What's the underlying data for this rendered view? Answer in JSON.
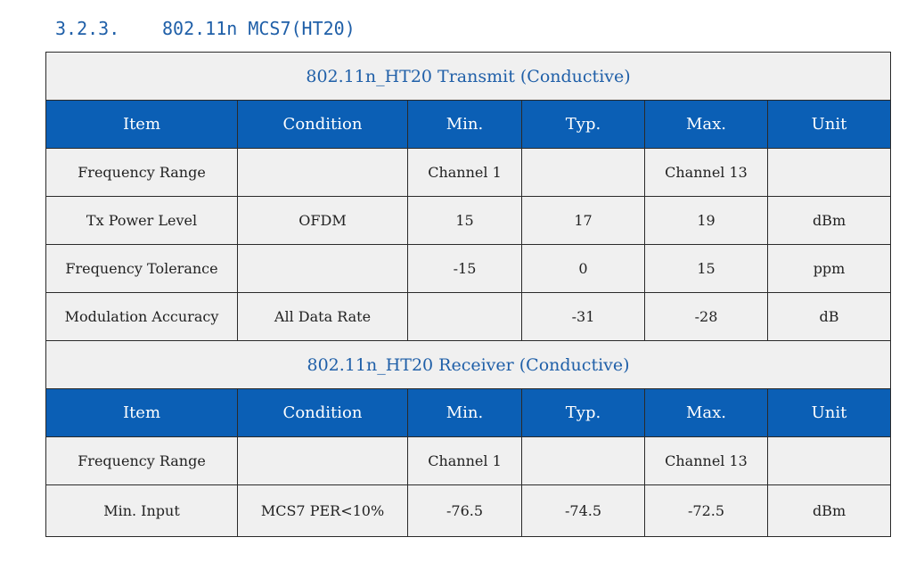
{
  "heading": {
    "number": "3.2.3.",
    "title": "802.11n MCS7(HT20)"
  },
  "transmit": {
    "title": "802.11n_HT20 Transmit (Conductive)",
    "columns": [
      "Item",
      "Condition",
      "Min.",
      "Typ.",
      "Max.",
      "Unit"
    ],
    "rows": [
      [
        "Frequency Range",
        "",
        "Channel 1",
        "",
        "Channel 13",
        ""
      ],
      [
        "Tx Power Level",
        "OFDM",
        "15",
        "17",
        "19",
        "dBm"
      ],
      [
        "Frequency Tolerance",
        "",
        "-15",
        "0",
        "15",
        "ppm"
      ],
      [
        "Modulation Accuracy",
        "All Data Rate",
        "",
        "-31",
        "-28",
        "dB"
      ]
    ]
  },
  "receiver": {
    "title": "802.11n_HT20 Receiver (Conductive)",
    "columns": [
      "Item",
      "Condition",
      "Min.",
      "Typ.",
      "Max.",
      "Unit"
    ],
    "rows": [
      [
        "Frequency Range",
        "",
        "Channel 1",
        "",
        "Channel 13",
        ""
      ],
      [
        "Min. Input",
        "MCS7 PER<10%",
        "-76.5",
        "-74.5",
        "-72.5",
        "dBm"
      ]
    ]
  }
}
